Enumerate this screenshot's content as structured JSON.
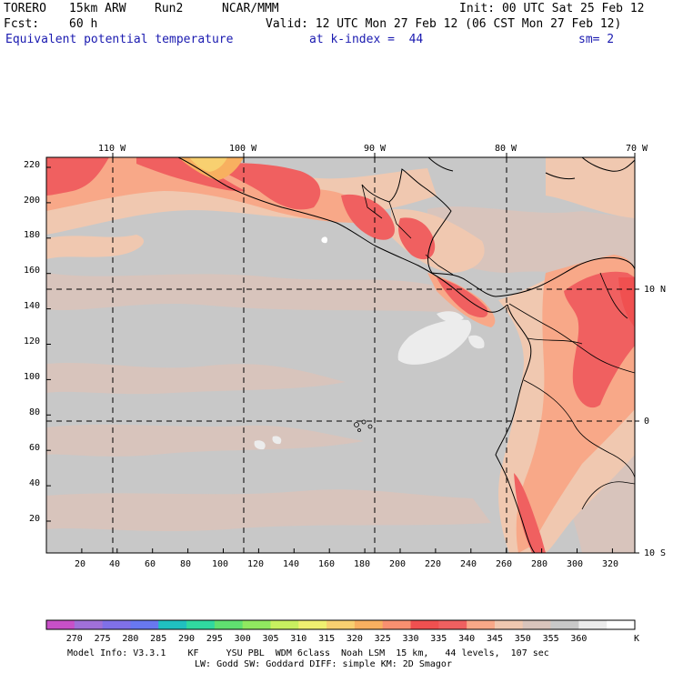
{
  "header": {
    "model": "TORERO",
    "resolution": "15km ARW",
    "run": "Run2",
    "org": "NCAR/MMM",
    "init": "Init: 00 UTC Sat 25 Feb 12",
    "fcst_label": "Fcst:",
    "fcst_value": "60 h",
    "valid": "Valid: 12 UTC Mon 27 Feb 12 (06 CST Mon 27 Feb 12)",
    "field": "Equivalent potential temperature",
    "level": "at k-index =  44",
    "smoothing": "sm= 2"
  },
  "axes": {
    "top_lon": [
      "110 W",
      "100 W",
      "90 W",
      "80 W",
      "70 W"
    ],
    "right_lat": [
      "10 N",
      "0",
      "10 S"
    ],
    "left_y": [
      "220",
      "200",
      "180",
      "160",
      "140",
      "120",
      "100",
      "80",
      "60",
      "40",
      "20"
    ],
    "bottom_x": [
      "20",
      "40",
      "60",
      "80",
      "100",
      "120",
      "140",
      "160",
      "180",
      "200",
      "220",
      "240",
      "260",
      "280",
      "300",
      "320"
    ]
  },
  "colorbar": {
    "labels": [
      "270",
      "275",
      "280",
      "285",
      "290",
      "295",
      "300",
      "305",
      "310",
      "315",
      "320",
      "325",
      "330",
      "335",
      "340",
      "345",
      "350",
      "355",
      "360"
    ],
    "unit": "K",
    "colors": [
      "#c850c8",
      "#a070d8",
      "#8070e8",
      "#6878f0",
      "#20c0c0",
      "#30d8a0",
      "#60e070",
      "#90e860",
      "#c8f060",
      "#f0f070",
      "#f8d070",
      "#f8b060",
      "#f89070",
      "#f05050",
      "#f06060",
      "#f8a888",
      "#f0c8b0",
      "#d8c4bc",
      "#c8c8c8",
      "#ececec",
      "#ffffff"
    ]
  },
  "footer": {
    "line1": "Model Info: V3.3.1    KF     YSU PBL  WDM 6class  Noah LSM  15 km,   44 levels,  107 sec",
    "line2": "LW: Godd SW: Goddard DIFF: simple KM: 2D Smagor"
  }
}
